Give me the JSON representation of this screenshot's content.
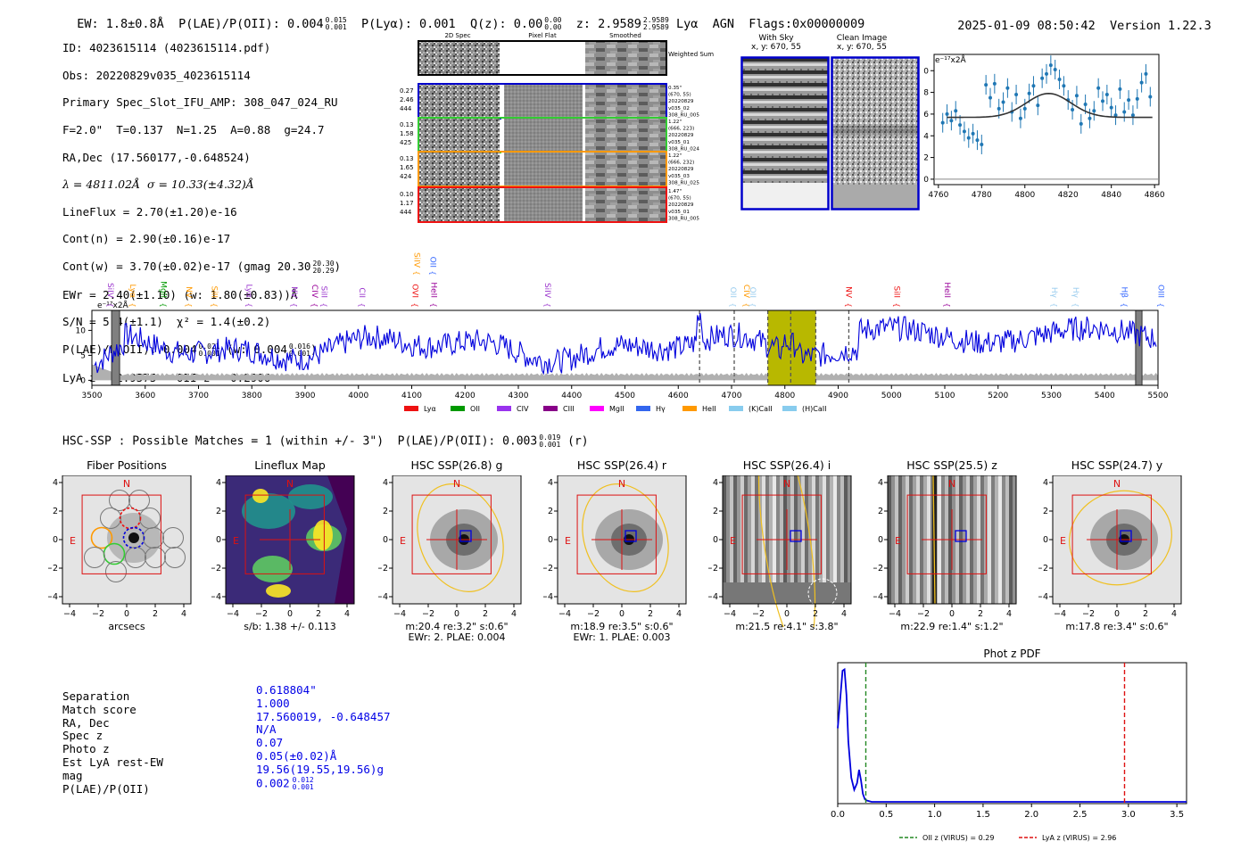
{
  "header": {
    "ew": "EW: 1.8±0.8Å",
    "plae": "P(LAE)/P(OII): 0.004",
    "plae_hi": "0.015",
    "plae_lo": "0.001",
    "plya": "P(Lyα): 0.001",
    "qz": "Q(z): 0.00",
    "qz_hi": "0.00",
    "qz_lo": "0.00",
    "z": "z: 2.9589",
    "z_hi": "2.9589",
    "z_lo": "2.9589",
    "lya": "Lyα",
    "agn": "AGN",
    "flags": "Flags:0x00000009",
    "datetime": "2025-01-09 08:50:42",
    "version": "Version 1.22.3"
  },
  "info": {
    "id": "ID: 4023615114 (4023615114.pdf)",
    "obs": "Obs: 20220829v035_4023615114",
    "primary": "Primary Spec_Slot_IFU_AMP: 308_047_024_RU",
    "fline": "F=2.0\"  T=0.137  N=1.25  A=0.88  g=24.7",
    "radec": "RA,Dec (17.560177,-0.648524)",
    "lambda": "λ = 4811.02Å  σ = 10.33(±4.32)Å",
    "lineflux": "LineFlux = 2.70(±1.20)e-16",
    "contn": "Cont(n) = 2.90(±0.16)e-17",
    "contw": "Cont(w) = 3.70(±0.02)e-17 (gmag 20.30",
    "contw_hi": "20.30",
    "contw_lo": "20.29",
    "ewr": "EWr = 2.40(±1.10) (w: 1.80(±0.83))Å",
    "sn": "S/N = 5.4(±1.1)  χ² = 1.4(±0.2)",
    "plae": "P(LAE)/P(OII): 0.004",
    "plae_hi": "0.021",
    "plae_lo": "0.001",
    "plae_w": "(w: 0.004",
    "plae_w_hi": "0.016",
    "plae_w_lo": "0.001",
    "lyaz": "LyA z = 2.9575   OII z = 0.2906"
  },
  "cutouts": {
    "col_headers": [
      "2D Spec",
      "Pixel Flat",
      "Smoothed"
    ],
    "weighted_sum": "Weighted Sum",
    "rows": [
      {
        "left": [
          "0.27",
          "2.46",
          "444"
        ],
        "right": [
          "0.35\"",
          "(670, 55)",
          "20220829",
          "v035_02",
          "308_RU_005"
        ],
        "color": "#0000cc"
      },
      {
        "left": [
          "0.13",
          "1.58",
          "425"
        ],
        "right": [
          "1.22\"",
          "(666, 223)",
          "20220829",
          "v035_01",
          "308_RU_024"
        ],
        "color": "#33cc33"
      },
      {
        "left": [
          "0.13",
          "1.65",
          "424"
        ],
        "right": [
          "1.22\"",
          "(666, 232)",
          "20220829",
          "v035_03",
          "308_RU_025"
        ],
        "color": "#ff9900"
      },
      {
        "left": [
          "0.10",
          "1.17",
          "444"
        ],
        "right": [
          "1.47\"",
          "(670, 55)",
          "20220829",
          "v035_01",
          "308_RU_005"
        ],
        "color": "#ee1111"
      }
    ],
    "with_sky": "With Sky",
    "with_sky_xy": "x, y: 670, 55",
    "clean_image": "Clean Image",
    "clean_image_xy": "x, y: 670, 55"
  },
  "line_fit_chart": {
    "ylabel": "e⁻¹⁷x2Å",
    "xlim": [
      4758,
      4862
    ],
    "ylim": [
      -0.5,
      11.5
    ],
    "xticks": [
      "4760",
      "4780",
      "4800",
      "4820",
      "4840",
      "4860"
    ],
    "yticks": [
      "0",
      "2",
      "4",
      "6",
      "8",
      "10"
    ],
    "points_x": [
      4762,
      4764,
      4766,
      4768,
      4770,
      4772,
      4774,
      4776,
      4778,
      4780,
      4782,
      4784,
      4786,
      4788,
      4790,
      4792,
      4794,
      4796,
      4798,
      4800,
      4802,
      4804,
      4806,
      4808,
      4810,
      4812,
      4814,
      4816,
      4818,
      4820,
      4822,
      4824,
      4826,
      4828,
      4830,
      4832,
      4834,
      4836,
      4838,
      4840,
      4842,
      4844,
      4846,
      4848,
      4850,
      4852,
      4854,
      4856,
      4858
    ],
    "points_y": [
      5.2,
      6.0,
      5.4,
      6.3,
      5.0,
      4.4,
      3.8,
      4.2,
      3.6,
      3.2,
      8.7,
      7.5,
      8.8,
      6.5,
      7.1,
      8.4,
      6.2,
      7.8,
      5.6,
      6.5,
      7.9,
      8.6,
      6.8,
      9.3,
      9.7,
      10.5,
      10.1,
      9.2,
      8.6,
      7.3,
      6.4,
      7.7,
      5.1,
      6.9,
      5.6,
      6.3,
      8.4,
      7.2,
      7.8,
      6.6,
      5.9,
      8.3,
      6.2,
      7.3,
      5.9,
      7.4,
      8.9,
      9.7,
      7.6
    ],
    "model_baseline": 5.7,
    "model_peak": 7.9,
    "model_center": 4811,
    "model_sigma": 10.3
  },
  "spectrum": {
    "ylabel": "e⁻¹⁷x2Å",
    "xlim": [
      3500,
      5500
    ],
    "ylim": [
      -1,
      14
    ],
    "xticks": [
      "3500",
      "3600",
      "3700",
      "3800",
      "3900",
      "4000",
      "4100",
      "4200",
      "4300",
      "4400",
      "4500",
      "4600",
      "4700",
      "4800",
      "4900",
      "5000",
      "5100",
      "5200",
      "5300",
      "5400",
      "5500"
    ],
    "yticks": [
      "0",
      "5",
      "10"
    ],
    "highlight_band": [
      4768,
      4858
    ],
    "masked_bands": [
      [
        3537,
        3552
      ],
      [
        5458,
        5470
      ]
    ],
    "dashed_lines": [
      4640,
      4705,
      4768,
      4811,
      4858,
      4920
    ],
    "upper_labels": [
      {
        "text": "SiIV",
        "x": 4100,
        "color": "#ff9900"
      },
      {
        "text": "OII",
        "x": 4130,
        "color": "#3366ff"
      }
    ],
    "lines": [
      {
        "text": "SiIV",
        "x": 3525,
        "color": "#9933cc"
      },
      {
        "text": "Lyα",
        "x": 3567,
        "color": "#ff9900"
      },
      {
        "text": "MgII",
        "x": 3625,
        "color": "#009900"
      },
      {
        "text": "NV",
        "x": 3672,
        "color": "#ff9900"
      },
      {
        "text": "SiII",
        "x": 3720,
        "color": "#ff9900"
      },
      {
        "text": "Lyα",
        "x": 3785,
        "color": "#9933cc"
      },
      {
        "text": "NV",
        "x": 3870,
        "color": "#9933cc"
      },
      {
        "text": "CIV",
        "x": 3908,
        "color": "#990099"
      },
      {
        "text": "SiII",
        "x": 3926,
        "color": "#9933cc"
      },
      {
        "text": "CII",
        "x": 3997,
        "color": "#9933cc"
      },
      {
        "text": "OVI",
        "x": 4097,
        "color": "#ee1111"
      },
      {
        "text": "HeII",
        "x": 4132,
        "color": "#990099"
      },
      {
        "text": "SiIV",
        "x": 4345,
        "color": "#9933cc"
      },
      {
        "text": "OII",
        "x": 4693,
        "color": "#99ccee"
      },
      {
        "text": "CIV",
        "x": 4718,
        "color": "#ff9900"
      },
      {
        "text": "OII",
        "x": 4730,
        "color": "#99ccee"
      },
      {
        "text": "NV",
        "x": 4910,
        "color": "#ee1111"
      },
      {
        "text": "SiII",
        "x": 5000,
        "color": "#ee1111"
      },
      {
        "text": "HeII",
        "x": 5095,
        "color": "#990099"
      },
      {
        "text": "Hγ",
        "x": 5296,
        "color": "#99ccee"
      },
      {
        "text": "Hγ",
        "x": 5336,
        "color": "#99ccee"
      },
      {
        "text": "Hβ",
        "x": 5427,
        "color": "#3366ff"
      },
      {
        "text": "OIII",
        "x": 5496,
        "color": "#3366ff"
      }
    ],
    "legend": [
      {
        "label": "Lyα",
        "color": "#ee1111"
      },
      {
        "label": "OII",
        "color": "#009900"
      },
      {
        "label": "CIV",
        "color": "#9933ee"
      },
      {
        "label": "CIII",
        "color": "#880088"
      },
      {
        "label": "MgII",
        "color": "#ff00ff"
      },
      {
        "label": "Hγ",
        "color": "#3366ee"
      },
      {
        "label": "HeII",
        "color": "#ff9900"
      },
      {
        "label": "(K)CaII",
        "color": "#88ccee"
      },
      {
        "label": "(H)CaII",
        "color": "#88ccee"
      }
    ]
  },
  "hsc": {
    "summary": "HSC-SSP : Possible Matches = 1 (within +/- 3\")  P(LAE)/P(OII): 0.003",
    "summary_hi": "0.019",
    "summary_lo": "0.001",
    "summary_band": "(r)",
    "axis_ticks": [
      "−4",
      "−2",
      "0",
      "2",
      "4"
    ],
    "north": "N",
    "east": "E",
    "panels": [
      {
        "title": "Fiber Positions",
        "cap1": "arcsecs",
        "cap2": ""
      },
      {
        "title": "Lineflux Map",
        "cap1": "s/b: 1.38 +/- 0.113",
        "cap2": ""
      },
      {
        "title": "HSC SSP(26.8) g",
        "cap1": "m:20.4  re:3.2\"  s:0.6\"",
        "cap2": "EWr: 2. PLAE: 0.004"
      },
      {
        "title": "HSC SSP(26.4) r",
        "cap1": "m:18.9  re:3.5\"  s:0.6\"",
        "cap2": "EWr: 1. PLAE: 0.003"
      },
      {
        "title": "HSC SSP(26.4) i",
        "cap1": "m:21.5  re:4.1\"  s:3.8\"",
        "cap2": ""
      },
      {
        "title": "HSC SSP(25.5) z",
        "cap1": "m:22.9  re:1.4\"  s:1.2\"",
        "cap2": ""
      },
      {
        "title": "HSC SSP(24.7) y",
        "cap1": "m:17.8  re:3.4\"  s:0.6\"",
        "cap2": ""
      }
    ]
  },
  "match": {
    "labels": [
      "Separation",
      "Match score",
      "RA, Dec",
      "Spec z",
      "Photo z",
      "Est LyA rest-EW",
      "mag",
      "P(LAE)/P(OII)"
    ],
    "values": [
      "0.618804\"",
      "1.000",
      "17.560019, -0.648457",
      "N/A",
      "0.07",
      "0.05(±0.02)Å",
      "19.56(19.55,19.56)g",
      "0.002"
    ],
    "plae_hi": "0.012",
    "plae_lo": "0.001"
  },
  "photz_chart": {
    "type": "line",
    "title": "Phot z PDF",
    "xlim": [
      0,
      3.6
    ],
    "xticks": [
      "0.0",
      "0.5",
      "1.0",
      "1.5",
      "2.0",
      "2.5",
      "3.0",
      "3.5"
    ],
    "x": [
      0.0,
      0.02,
      0.05,
      0.07,
      0.09,
      0.11,
      0.14,
      0.17,
      0.2,
      0.22,
      0.24,
      0.26,
      0.28,
      0.3,
      0.35,
      0.5,
      1.0,
      2.0,
      3.0,
      3.6
    ],
    "y": [
      0.55,
      0.72,
      0.98,
      0.99,
      0.8,
      0.45,
      0.18,
      0.09,
      0.14,
      0.24,
      0.16,
      0.06,
      0.02,
      0.01,
      0.0,
      0.0,
      0.0,
      0.0,
      0.0,
      0.0
    ],
    "oii_z": 0.29,
    "lya_z": 2.96,
    "legend": [
      "OII z (VIRUS) = 0.29",
      "LyA z (VIRUS) = 2.96"
    ]
  }
}
